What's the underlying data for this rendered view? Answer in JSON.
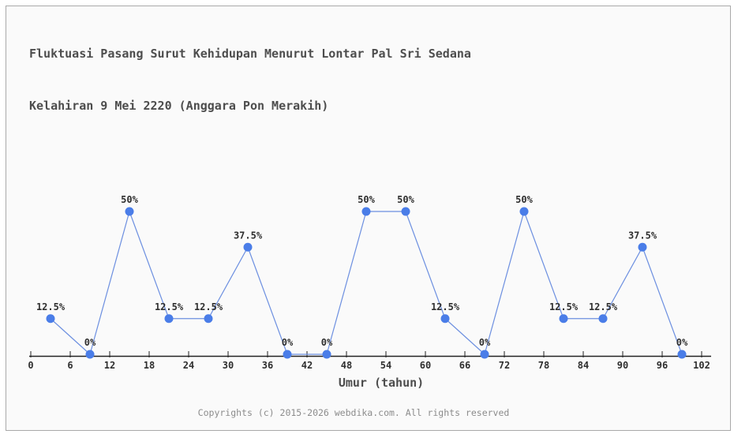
{
  "title": {
    "line1": "Fluktuasi Pasang Surut Kehidupan Menurut Lontar Pal Sri Sedana",
    "line2": "Kelahiran 9 Mei 2220 (Anggara Pon Merakih)"
  },
  "footer": {
    "copyright": "Copyrights (c) 2015-2026 webdika.com. All rights reserved"
  },
  "chart_data": {
    "type": "line",
    "title": "Fluktuasi Pasang Surut Kehidupan Menurut Lontar Pal Sri Sedana Kelahiran 9 Mei 2220 (Anggara Pon Merakih)",
    "xlabel": "Umur (tahun)",
    "ylabel": "",
    "x": [
      3,
      9,
      15,
      21,
      27,
      33,
      39,
      45,
      51,
      57,
      63,
      69,
      75,
      81,
      87,
      93,
      99
    ],
    "values": [
      12.5,
      0,
      50,
      12.5,
      12.5,
      37.5,
      0,
      0,
      50,
      50,
      12.5,
      0,
      50,
      12.5,
      12.5,
      37.5,
      0
    ],
    "point_labels": [
      "12.5%",
      "0%",
      "50%",
      "12.5%",
      "12.5%",
      "37.5%",
      "0%",
      "0%",
      "50%",
      "50%",
      "12.5%",
      "0%",
      "50%",
      "12.5%",
      "12.5%",
      "37.5%",
      "0%"
    ],
    "x_ticks": [
      0,
      6,
      12,
      18,
      24,
      30,
      36,
      42,
      48,
      54,
      60,
      66,
      72,
      78,
      84,
      90,
      96,
      102
    ],
    "xlim": [
      0,
      102
    ],
    "ylim": [
      0,
      55
    ],
    "grid": false,
    "legend": false,
    "colors": {
      "line": "#6c8fe0",
      "marker": "#4a7de8",
      "axis": "#222222",
      "tick_label": "#2e2e2e",
      "point_label": "#2e2e2e",
      "title": "#4d4d4d",
      "footer": "#8c8c8c",
      "chart_background": "#fafafa",
      "border": "#a9a9a9",
      "page_background": "#ffffff"
    }
  }
}
